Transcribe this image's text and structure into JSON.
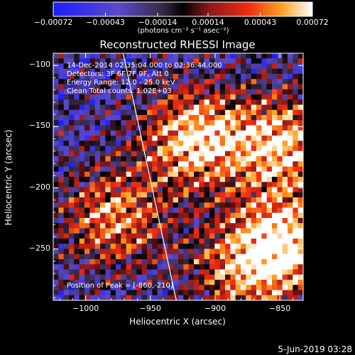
{
  "chart_data": {
    "type": "heatmap",
    "title": "Reconstructed RHESSI Image",
    "xlabel": "Heliocentric X (arcsec)",
    "ylabel": "Heliocentric Y (arcsec)",
    "xlim": [
      -1025,
      -832
    ],
    "ylim": [
      -292,
      -90
    ],
    "xticks": [
      -1000,
      -950,
      -900,
      -850
    ],
    "xtick_labels": [
      "−1000",
      "−950",
      "−900",
      "−850"
    ],
    "yticks": [
      -100,
      -150,
      -200,
      -250
    ],
    "ytick_labels": [
      "−100",
      "−150",
      "−200",
      "−250"
    ],
    "grid": false,
    "colorbar": {
      "ticks": [
        -0.00072,
        -0.00043,
        -0.00014,
        0.00014,
        0.00043,
        0.00072
      ],
      "tick_labels": [
        "−0.00072",
        "−0.00043",
        "−0.00014",
        "0.00014",
        "0.00043",
        "0.00072"
      ],
      "unit_label": "(photons cm⁻² s⁻¹ asec⁻²)",
      "range": [
        -0.00072,
        0.00072
      ]
    },
    "limb_line": {
      "x": [
        -971,
        -930
      ],
      "y": [
        -90,
        -292
      ]
    },
    "annotations": {
      "time_range": "14-Dec-2014 02:35:04.000 to 02:36:44.000",
      "detectors": "Detectors: 3F 6F 7F 9F, Att 0",
      "energy_range": "Energy Range: 12.0 - 25.0 keV",
      "clean_counts": "Clean     Total counts: 1.02E+03",
      "peak": "Position of Peak = [-860,-210]"
    },
    "source_centers": [
      {
        "x": -915,
        "y": -160,
        "strength": 1.0
      },
      {
        "x": -848,
        "y": -165,
        "strength": 0.9
      },
      {
        "x": -848,
        "y": -245,
        "strength": 1.0
      },
      {
        "x": -978,
        "y": -225,
        "strength": 0.75
      },
      {
        "x": -880,
        "y": -270,
        "strength": 0.6
      }
    ],
    "colors": {
      "background": "#000000",
      "text": "#ffffff"
    }
  },
  "footer": {
    "timestamp": "5-Jun-2019 03:28"
  }
}
